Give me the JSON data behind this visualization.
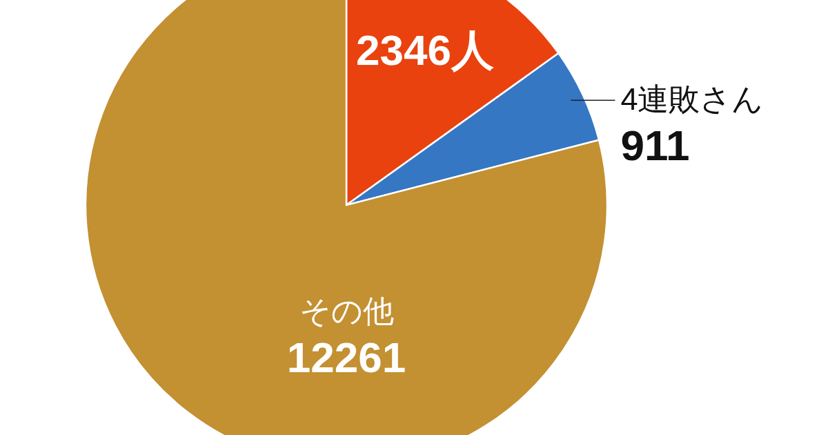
{
  "chart_data": {
    "type": "pie",
    "categories": [
      null,
      "4連敗さん",
      "その他"
    ],
    "values": [
      2346,
      911,
      12261
    ],
    "colors": [
      "#e9420e",
      "#3577c3",
      "#c39032"
    ],
    "value_labels": [
      "2346人",
      "911",
      "12261"
    ]
  }
}
